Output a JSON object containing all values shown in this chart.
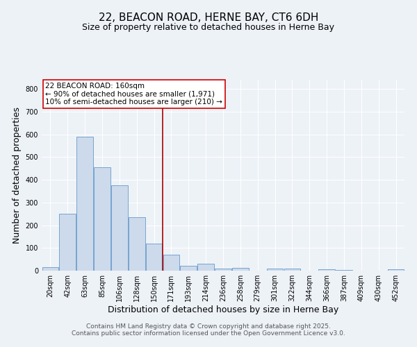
{
  "title": "22, BEACON ROAD, HERNE BAY, CT6 6DH",
  "subtitle": "Size of property relative to detached houses in Herne Bay",
  "xlabel": "Distribution of detached houses by size in Herne Bay",
  "ylabel": "Number of detached properties",
  "categories": [
    "20sqm",
    "42sqm",
    "63sqm",
    "85sqm",
    "106sqm",
    "128sqm",
    "150sqm",
    "171sqm",
    "193sqm",
    "214sqm",
    "236sqm",
    "258sqm",
    "279sqm",
    "301sqm",
    "322sqm",
    "344sqm",
    "366sqm",
    "387sqm",
    "409sqm",
    "430sqm",
    "452sqm"
  ],
  "values": [
    15,
    250,
    590,
    455,
    375,
    235,
    120,
    70,
    20,
    30,
    10,
    12,
    0,
    10,
    10,
    0,
    5,
    3,
    0,
    0,
    5
  ],
  "bar_color": "#ccdaeb",
  "bar_edge_color": "#6699cc",
  "red_line_x": 6.5,
  "annotation_text": "22 BEACON ROAD: 160sqm\n← 90% of detached houses are smaller (1,971)\n10% of semi-detached houses are larger (210) →",
  "annotation_box_color": "#ffffff",
  "annotation_box_edge": "#cc0000",
  "red_line_color": "#aa0000",
  "background_color": "#edf2f7",
  "ylim": [
    0,
    840
  ],
  "yticks": [
    0,
    100,
    200,
    300,
    400,
    500,
    600,
    700,
    800
  ],
  "footer_line1": "Contains HM Land Registry data © Crown copyright and database right 2025.",
  "footer_line2": "Contains public sector information licensed under the Open Government Licence v3.0.",
  "title_fontsize": 11,
  "subtitle_fontsize": 9,
  "axis_label_fontsize": 9,
  "tick_fontsize": 7,
  "annotation_fontsize": 7.5,
  "footer_fontsize": 6.5
}
